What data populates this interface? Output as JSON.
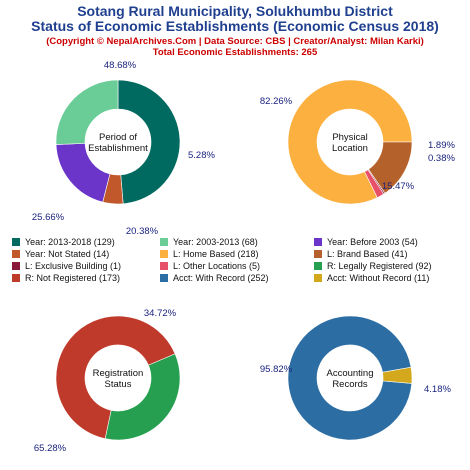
{
  "header": {
    "title_line1": "Sotang Rural Municipality, Solukhumbu District",
    "title_line2": "Status of Economic Establishments (Economic Census 2018)",
    "copyright": "(Copyright © NepalArchives.Com | Data Source: CBS | Creator/Analyst: Milan Karki)",
    "total": "Total Economic Establishments: 265"
  },
  "chart_data": [
    {
      "type": "pie",
      "center_label": [
        "Period of",
        "Establishment"
      ],
      "slices": [
        {
          "name": "Year: 2013-2018",
          "value": 129,
          "pct_label": "48.68%",
          "color": "#006a60"
        },
        {
          "name": "Year: Not Stated",
          "value": 14,
          "pct_label": "5.28%",
          "color": "#c0582b"
        },
        {
          "name": "Year: Before 2003",
          "value": 54,
          "pct_label": "20.38%",
          "color": "#6a35c8"
        },
        {
          "name": "Year: 2003-2013",
          "value": 68,
          "pct_label": "25.66%",
          "color": "#6acd98"
        }
      ]
    },
    {
      "type": "pie",
      "center_label": [
        "Physical",
        "Location"
      ],
      "slices": [
        {
          "name": "L: Home Based",
          "value": 218,
          "pct_label": "82.26%",
          "color": "#fbb040"
        },
        {
          "name": "L: Other Locations",
          "value": 5,
          "pct_label": "1.89%",
          "color": "#e8506a"
        },
        {
          "name": "L: Exclusive Building",
          "value": 1,
          "pct_label": "0.38%",
          "color": "#8a1a3a"
        },
        {
          "name": "L: Brand Based",
          "value": 41,
          "pct_label": "15.47%",
          "color": "#b5612b"
        }
      ]
    },
    {
      "type": "pie",
      "center_label": [
        "Registration",
        "Status"
      ],
      "slices": [
        {
          "name": "R: Legally Registered",
          "value": 92,
          "pct_label": "34.72%",
          "color": "#26a050"
        },
        {
          "name": "R: Not Registered",
          "value": 173,
          "pct_label": "65.28%",
          "color": "#c03a2b"
        }
      ]
    },
    {
      "type": "pie",
      "center_label": [
        "Accounting",
        "Records"
      ],
      "slices": [
        {
          "name": "Acct: With Record",
          "value": 252,
          "pct_label": "95.82%",
          "color": "#2c6ea3"
        },
        {
          "name": "Acct: Without Record",
          "value": 11,
          "pct_label": "4.18%",
          "color": "#d4a81c"
        }
      ]
    }
  ],
  "legend": [
    {
      "label": "Year: 2013-2018 (129)",
      "color": "#006a60"
    },
    {
      "label": "Year: 2003-2013 (68)",
      "color": "#6acd98"
    },
    {
      "label": "Year: Before 2003 (54)",
      "color": "#6a35c8"
    },
    {
      "label": "Year: Not Stated (14)",
      "color": "#c0582b"
    },
    {
      "label": "L: Home Based (218)",
      "color": "#fbb040"
    },
    {
      "label": "L: Brand Based (41)",
      "color": "#b5612b"
    },
    {
      "label": "L: Exclusive Building (1)",
      "color": "#8a1a3a"
    },
    {
      "label": "L: Other Locations (5)",
      "color": "#e8506a"
    },
    {
      "label": "R: Legally Registered (92)",
      "color": "#26a050"
    },
    {
      "label": "R: Not Registered (173)",
      "color": "#c03a2b"
    },
    {
      "label": "Acct: With Record (252)",
      "color": "#2c6ea3"
    },
    {
      "label": "Acct: Without Record (11)",
      "color": "#d4a81c"
    }
  ]
}
